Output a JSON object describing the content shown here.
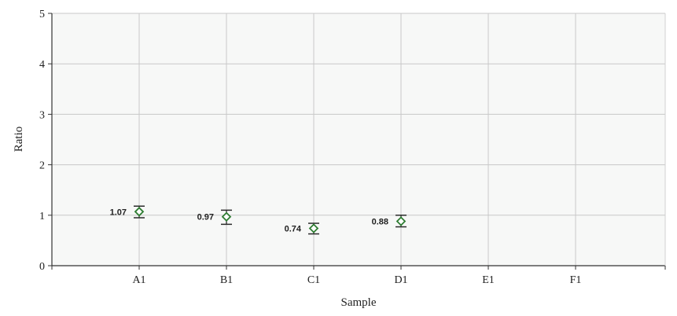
{
  "chart_data": {
    "type": "scatter",
    "xlabel": "Sample",
    "ylabel": "Ratio",
    "categories": [
      "A1",
      "B1",
      "C1",
      "D1",
      "E1",
      "F1"
    ],
    "ylim": [
      0,
      5
    ],
    "yticks": [
      "0",
      "1",
      "2",
      "3",
      "4",
      "5"
    ],
    "grid": true,
    "points": [
      {
        "category": "A1",
        "value": 1.07,
        "label": "1.07",
        "err_low": 0.95,
        "err_high": 1.18
      },
      {
        "category": "B1",
        "value": 0.97,
        "label": "0.97",
        "err_low": 0.82,
        "err_high": 1.1
      },
      {
        "category": "C1",
        "value": 0.74,
        "label": "0.74",
        "err_low": 0.63,
        "err_high": 0.84
      },
      {
        "category": "D1",
        "value": 0.88,
        "label": "0.88",
        "err_low": 0.77,
        "err_high": 1.0
      }
    ],
    "colors": {
      "marker": "#2e7d32",
      "errorbar": "#2b2b2b",
      "grid": "#c8c8c8",
      "plot_bg": "#f7f8f7",
      "axis": "#333333"
    }
  }
}
